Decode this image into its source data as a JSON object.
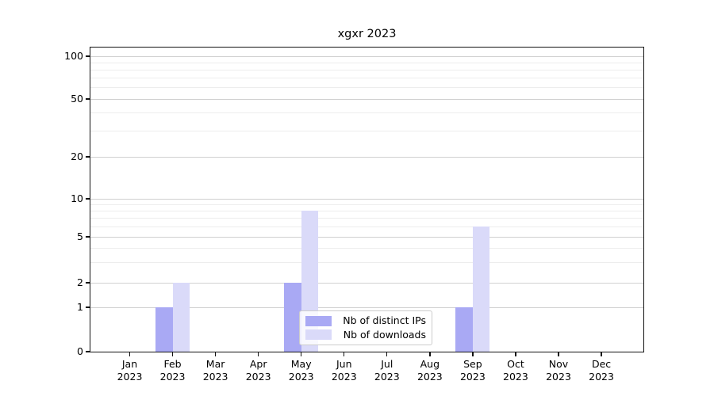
{
  "chart_data": {
    "type": "bar",
    "title": "xgxr 2023",
    "categories": [
      "Jan",
      "Feb",
      "Mar",
      "Apr",
      "May",
      "Jun",
      "Jul",
      "Aug",
      "Sep",
      "Oct",
      "Nov",
      "Dec"
    ],
    "year_label": "2023",
    "series": [
      {
        "name": "Nb of distinct IPs",
        "color": "#a9a9f4",
        "values": [
          0,
          1,
          0,
          0,
          2,
          0,
          0,
          0,
          1,
          0,
          0,
          0
        ]
      },
      {
        "name": "Nb of downloads",
        "color": "#dadaf9",
        "values": [
          0,
          2,
          0,
          0,
          8,
          0,
          0,
          0,
          6,
          0,
          0,
          0
        ]
      }
    ],
    "y_axis": {
      "scale": "symlog",
      "major_ticks": [
        0,
        1,
        2,
        5,
        10,
        20,
        50,
        100
      ],
      "minor_ticks": [
        3,
        4,
        6,
        7,
        8,
        9,
        30,
        40,
        60,
        70,
        80,
        90
      ],
      "ylim": [
        0,
        107
      ]
    },
    "x_axis": {
      "label_format": "month over year"
    },
    "grid": "on",
    "legend_position": "lower center inside plot",
    "background_color": "#ffffff"
  }
}
